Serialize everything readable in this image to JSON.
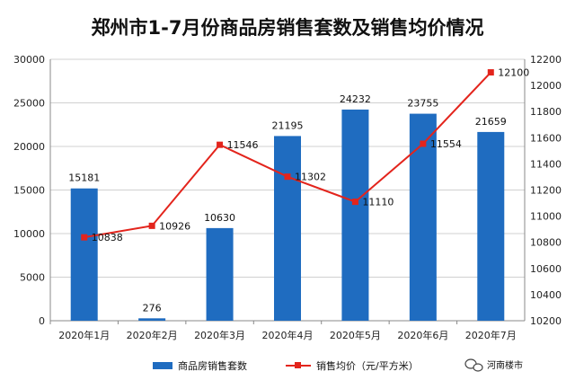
{
  "chart_data": {
    "type": "bar",
    "title": "郑州市1-7月份商品房销售套数及销售均价情况",
    "categories": [
      "2020年1月",
      "2020年2月",
      "2020年3月",
      "2020年4月",
      "2020年5月",
      "2020年6月",
      "2020年7月"
    ],
    "series": [
      {
        "name": "商品房销售套数",
        "type": "bar",
        "axis": "left",
        "color": "#1f6cc0",
        "values": [
          15181,
          276,
          10630,
          21195,
          24232,
          23755,
          21659
        ]
      },
      {
        "name": "销售均价（元/平方米）",
        "type": "line",
        "axis": "right",
        "color": "#e3241c",
        "values": [
          10838,
          10926,
          11546,
          11302,
          11110,
          11554,
          12100
        ]
      }
    ],
    "ylim_left": [
      0,
      30000
    ],
    "yticks_left": [
      0,
      5000,
      10000,
      15000,
      20000,
      25000,
      30000
    ],
    "ylim_right": [
      10200,
      12200
    ],
    "yticks_right": [
      10200,
      10400,
      10600,
      10800,
      11000,
      11200,
      11400,
      11600,
      11800,
      12000,
      12200
    ],
    "grid": true,
    "legend_position": "bottom"
  },
  "watermark": {
    "icon": "wechat-icon",
    "text": "河南楼市"
  }
}
